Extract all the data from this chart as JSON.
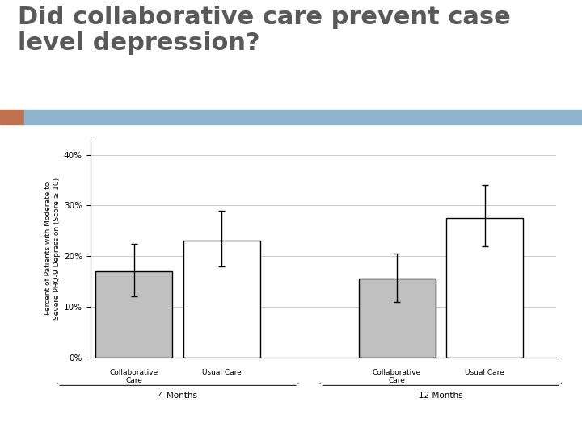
{
  "title_line1": "Did collaborative care prevent case",
  "title_line2": "level depression?",
  "title_color": "#595959",
  "title_fontsize": 22,
  "title_fontweight": "bold",
  "header_bar_color_left": "#c0714f",
  "header_bar_color_right": "#8eb4cb",
  "ylabel": "Percent of Patients with Moderate to\nSevere PHQ-9 Depression (Score ≥ 10)",
  "ylabel_fontsize": 6.5,
  "yticks": [
    0,
    10,
    20,
    30,
    40
  ],
  "ytick_labels": [
    "0%",
    "10%",
    "20%",
    "30%",
    "40%"
  ],
  "ylim": [
    0,
    43
  ],
  "groups": [
    "4 Months",
    "12 Months"
  ],
  "bar_labels": [
    "Collaborative\nCare",
    "Usual Care"
  ],
  "bar_values": [
    [
      17,
      23
    ],
    [
      15.5,
      27.5
    ]
  ],
  "bar_errors": [
    [
      [
        5.0,
        5.5
      ],
      [
        5.0,
        6.0
      ]
    ],
    [
      [
        4.5,
        5.0
      ],
      [
        5.5,
        6.5
      ]
    ]
  ],
  "bar_colors": [
    "#c0c0c0",
    "#ffffff"
  ],
  "bar_edgecolor": "#000000",
  "bar_linewidth": 1.0,
  "error_capsize": 3,
  "error_linewidth": 1.0,
  "error_color": "#000000",
  "group_label_fontsize": 7.5,
  "bar_label_fontsize": 6.5,
  "tick_fontsize": 7.5,
  "background_color": "#ffffff",
  "plot_bg_color": "#ffffff",
  "grid_color": "#cccccc",
  "grid_linewidth": 0.7,
  "bar_width": 0.28,
  "group_centers": [
    0.42,
    1.38
  ]
}
